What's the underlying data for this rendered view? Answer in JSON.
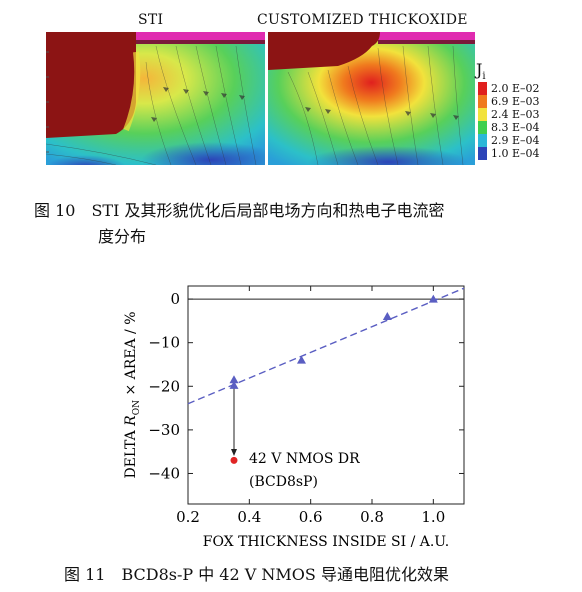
{
  "figure10": {
    "panel_left_title": "STI",
    "panel_right_title": "CUSTOMIZED THICKOXIDE",
    "legend_title": "J",
    "legend_title_sub": "i",
    "legend_labels": [
      "2.0 E–02",
      "6.9 E–03",
      "2.4 E–03",
      "8.3 E–04",
      "2.9 E–04",
      "1.0 E–04"
    ],
    "legend_colors": [
      "#e0201e",
      "#f07a1e",
      "#f2e23c",
      "#3fcf4f",
      "#2bb7d8",
      "#2c44b8"
    ],
    "caption_line1": "图 10　STI 及其形貌优化后局部电场方向和热电子电流密",
    "caption_line2": "度分布"
  },
  "figure11": {
    "caption": "图 11　BCD8s-P 中 42 V NMOS 导通电阻优化效果",
    "annotation_line1": "42 V NMOS DR",
    "annotation_line2": "(BCD8sP)"
  },
  "chart_data": {
    "type": "scatter",
    "xlabel": "FOX THICKNESS INSIDE SI / A.U.",
    "ylabel_parts": [
      "DELTA ",
      "R",
      "ON",
      " × AREA / %"
    ],
    "xlim": [
      0.2,
      1.1
    ],
    "ylim": [
      -47,
      3
    ],
    "xticks": [
      0.2,
      0.4,
      0.6,
      0.8,
      1.0
    ],
    "xtick_labels": [
      "0.2",
      "0.4",
      "0.6",
      "0.8",
      "1.0"
    ],
    "yticks": [
      0,
      -10,
      -20,
      -30,
      -40
    ],
    "ytick_labels": [
      "0",
      "−10",
      "−20",
      "−30",
      "−40"
    ],
    "series": [
      {
        "marker": "triangle",
        "color": "#5a5ec2",
        "x": [
          0.35,
          0.35,
          0.57,
          0.85,
          1.0
        ],
        "y": [
          -18.5,
          -19.8,
          -14,
          -4,
          0
        ]
      },
      {
        "marker": "circle",
        "color": "#e02424",
        "x": [
          0.35
        ],
        "y": [
          -37
        ]
      }
    ],
    "trendline": {
      "style": "dashed",
      "color": "#5a5ec2",
      "x": [
        0.2,
        1.1
      ],
      "y": [
        -24,
        2.5
      ]
    },
    "reference_line_y": 0,
    "annotation_arrow": {
      "from": [
        0.35,
        -20.5
      ],
      "to": [
        0.35,
        -36
      ]
    }
  }
}
